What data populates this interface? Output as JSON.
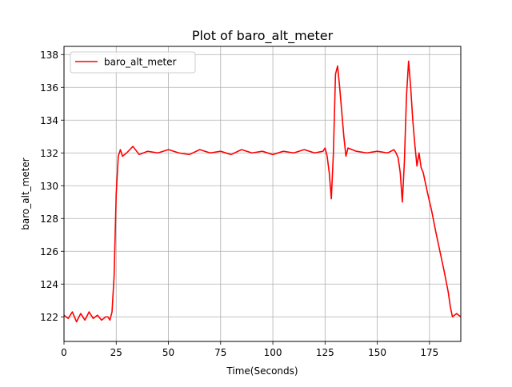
{
  "chart_data": {
    "type": "line",
    "title": "Plot of baro_alt_meter",
    "xlabel": "Time(Seconds)",
    "ylabel": "baro_alt_meter",
    "xlim": [
      0,
      190
    ],
    "ylim": [
      120.5,
      138.5
    ],
    "x_ticks": [
      0,
      25,
      50,
      75,
      100,
      125,
      150,
      175
    ],
    "y_ticks": [
      122,
      124,
      126,
      128,
      130,
      132,
      134,
      136,
      138
    ],
    "grid": true,
    "legend_position": "upper-left",
    "series": [
      {
        "name": "baro_alt_meter",
        "color": "#ff0000",
        "x": [
          0,
          2,
          4,
          6,
          8,
          10,
          12,
          14,
          16,
          18,
          20,
          21,
          22,
          23,
          24,
          25,
          26,
          27,
          28,
          30,
          33,
          36,
          40,
          45,
          50,
          55,
          60,
          65,
          70,
          75,
          80,
          85,
          90,
          95,
          100,
          105,
          110,
          115,
          120,
          124,
          125,
          126,
          127,
          128,
          129,
          130,
          131,
          132,
          133,
          134,
          135,
          136,
          140,
          145,
          150,
          155,
          158,
          159,
          160,
          161,
          162,
          163,
          164,
          165,
          166,
          167,
          168,
          169,
          170,
          171,
          172,
          174,
          176,
          178,
          180,
          182,
          184,
          185,
          186,
          188,
          190
        ],
        "y": [
          122.1,
          121.9,
          122.3,
          121.7,
          122.2,
          121.8,
          122.3,
          121.9,
          122.1,
          121.8,
          122.0,
          122.0,
          121.8,
          122.3,
          124.5,
          129.5,
          131.8,
          132.2,
          131.8,
          132.0,
          132.4,
          131.9,
          132.1,
          132.0,
          132.2,
          132.0,
          131.9,
          132.2,
          132.0,
          132.1,
          131.9,
          132.2,
          132.0,
          132.1,
          131.9,
          132.1,
          132.0,
          132.2,
          132.0,
          132.1,
          132.3,
          131.8,
          130.8,
          129.2,
          132.0,
          136.8,
          137.3,
          136.0,
          134.5,
          133.0,
          131.8,
          132.3,
          132.1,
          132.0,
          132.1,
          132.0,
          132.2,
          132.0,
          131.7,
          130.8,
          129.0,
          131.5,
          135.5,
          137.6,
          136.0,
          134.0,
          132.5,
          131.2,
          132.0,
          131.1,
          130.8,
          129.6,
          128.5,
          127.2,
          126.0,
          124.8,
          123.5,
          122.6,
          122.0,
          122.2,
          122.0
        ]
      }
    ]
  }
}
